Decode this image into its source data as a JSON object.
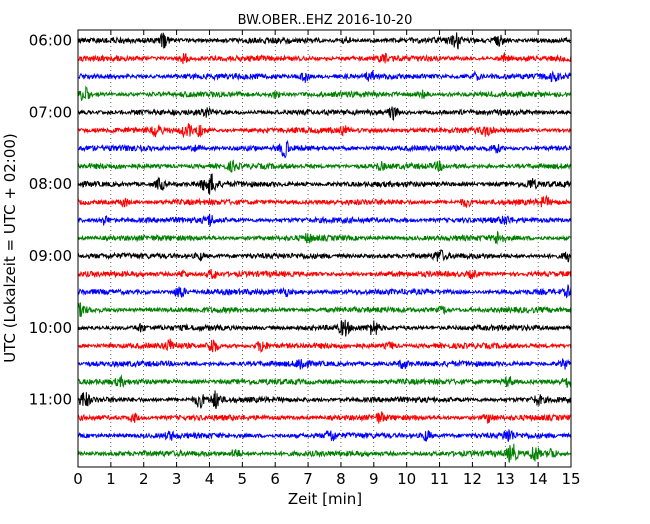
{
  "chart_data": {
    "type": "line",
    "title": "BW.OBER..EHZ 2016-10-20",
    "xlabel": "Zeit  [min]",
    "ylabel": "UTC (Lokalzeit = UTC + 02:00)",
    "xlim": [
      0,
      15
    ],
    "x_ticks": [
      "0",
      "1",
      "2",
      "3",
      "4",
      "5",
      "6",
      "7",
      "8",
      "9",
      "10",
      "11",
      "12",
      "13",
      "14",
      "15"
    ],
    "y_tick_labels": [
      "06:00",
      "07:00",
      "08:00",
      "09:00",
      "10:00",
      "11:00"
    ],
    "trace_interval_minutes": 15,
    "trace_start_times": [
      "06:00",
      "06:15",
      "06:30",
      "06:45",
      "07:00",
      "07:15",
      "07:30",
      "07:45",
      "08:00",
      "08:15",
      "08:30",
      "08:45",
      "09:00",
      "09:15",
      "09:30",
      "09:45",
      "10:00",
      "10:15",
      "10:30",
      "10:45",
      "11:00",
      "11:15",
      "11:30",
      "11:45"
    ],
    "color_cycle": [
      "#000000",
      "#ff0000",
      "#0000ff",
      "#008000"
    ],
    "vertical_grid": "dotted",
    "legend": "none"
  }
}
